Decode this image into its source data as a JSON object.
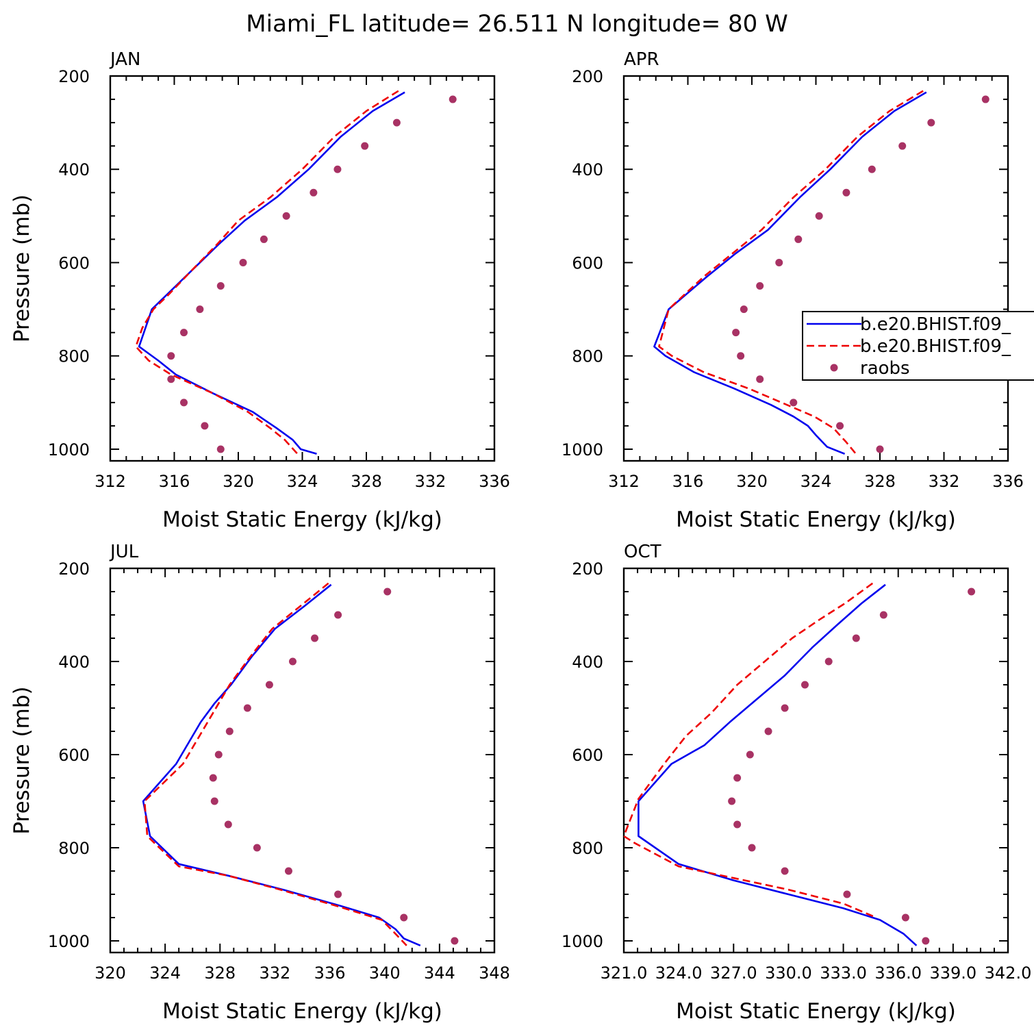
{
  "figure": {
    "title": "Miami_FL  latitude= 26.511 N longitude= 80 W"
  },
  "colors": {
    "series_solid": "#0000ee",
    "series_dashed": "#ee0000",
    "raobs": "#a83264"
  },
  "legend": {
    "entries": [
      "b.e20.BHIST.f09_",
      "b.e20.BHIST.f09_",
      "raobs"
    ],
    "placement": "right edge of APR panel, clipped"
  },
  "chart_data": [
    {
      "type": "line",
      "title": "JAN",
      "xlabel": "Moist Static Energy (kJ/kg)",
      "ylabel": "Pressure (mb)",
      "xlim": [
        312,
        336
      ],
      "ylim": [
        1025,
        200
      ],
      "xticks": [
        312,
        316,
        320,
        324,
        328,
        332,
        336
      ],
      "xtick_labels": [
        "312",
        "316",
        "320",
        "324",
        "328",
        "332",
        "336"
      ],
      "yticks": [
        200,
        400,
        600,
        800,
        1000
      ],
      "ytick_labels": [
        "200",
        "400",
        "600",
        "800",
        "1000"
      ],
      "series": [
        {
          "style": "solid",
          "x": [
            330.4,
            328.4,
            326.4,
            324.4,
            322.4,
            320.4,
            318.8,
            317.0,
            315.5,
            314.6,
            313.8,
            315.0,
            316.1,
            318.4,
            320.9,
            322.4,
            323.4,
            323.9,
            324.9
          ],
          "y": [
            235,
            275,
            330,
            400,
            460,
            510,
            560,
            620,
            670,
            700,
            780,
            810,
            840,
            880,
            920,
            955,
            980,
            1000,
            1010
          ]
        },
        {
          "style": "dashed",
          "x": [
            330.0,
            328.0,
            326.0,
            324.0,
            322.0,
            320.0,
            318.7,
            317.0,
            315.6,
            314.7,
            314.0,
            313.6,
            314.4,
            315.8,
            318.4,
            320.6,
            322.0,
            322.9,
            323.7
          ],
          "y": [
            232,
            275,
            330,
            400,
            460,
            510,
            560,
            620,
            670,
            700,
            740,
            780,
            810,
            840,
            880,
            920,
            955,
            980,
            1010
          ]
        },
        {
          "style": "markers",
          "x": [
            333.4,
            329.9,
            327.9,
            326.2,
            324.7,
            323.0,
            321.6,
            320.3,
            318.9,
            317.6,
            316.6,
            315.8,
            315.8,
            316.6,
            317.9,
            318.9
          ],
          "y": [
            250,
            300,
            350,
            400,
            450,
            500,
            550,
            600,
            650,
            700,
            750,
            800,
            850,
            900,
            950,
            1000
          ]
        }
      ]
    },
    {
      "type": "line",
      "title": "APR",
      "xlabel": "Moist Static Energy (kJ/kg)",
      "ylabel": "",
      "xlim": [
        312,
        336
      ],
      "ylim": [
        1025,
        200
      ],
      "xticks": [
        312,
        316,
        320,
        324,
        328,
        332,
        336
      ],
      "xtick_labels": [
        "312",
        "316",
        "320",
        "324",
        "328",
        "332",
        "336"
      ],
      "yticks": [
        200,
        400,
        600,
        800,
        1000
      ],
      "ytick_labels": [
        "200",
        "400",
        "600",
        "800",
        "1000"
      ],
      "series": [
        {
          "style": "solid",
          "x": [
            330.9,
            328.9,
            326.9,
            324.9,
            323.0,
            321.0,
            319.0,
            317.2,
            314.8,
            313.9,
            314.6,
            316.4,
            318.9,
            321.2,
            322.6,
            323.5,
            324.0,
            324.7,
            325.8
          ],
          "y": [
            235,
            275,
            330,
            400,
            460,
            530,
            580,
            630,
            700,
            780,
            800,
            835,
            870,
            905,
            930,
            950,
            970,
            995,
            1010
          ]
        },
        {
          "style": "dashed",
          "x": [
            330.7,
            328.6,
            326.6,
            324.6,
            322.6,
            320.6,
            318.8,
            317.0,
            314.8,
            314.2,
            315.0,
            317.0,
            319.8,
            322.2,
            323.9,
            325.1,
            325.9,
            326.5
          ],
          "y": [
            232,
            275,
            330,
            400,
            460,
            530,
            580,
            630,
            700,
            780,
            800,
            835,
            870,
            905,
            930,
            955,
            985,
            1010
          ]
        },
        {
          "style": "markers",
          "x": [
            334.6,
            331.2,
            329.4,
            327.5,
            325.9,
            324.2,
            322.9,
            321.7,
            320.5,
            319.5,
            319.0,
            319.3,
            320.5,
            322.6,
            325.5,
            328.0
          ],
          "y": [
            250,
            300,
            350,
            400,
            450,
            500,
            550,
            600,
            650,
            700,
            750,
            800,
            850,
            900,
            950,
            1000
          ]
        }
      ]
    },
    {
      "type": "line",
      "title": "JUL",
      "xlabel": "Moist Static Energy (kJ/kg)",
      "ylabel": "Pressure (mb)",
      "xlim": [
        320,
        348
      ],
      "ylim": [
        1025,
        200
      ],
      "xticks": [
        320,
        324,
        328,
        332,
        336,
        340,
        344,
        348
      ],
      "xtick_labels": [
        "320",
        "324",
        "328",
        "332",
        "336",
        "340",
        "344",
        "348"
      ],
      "series": [
        {
          "style": "solid",
          "x": [
            336.1,
            334.2,
            332.0,
            330.3,
            328.8,
            327.6,
            326.6,
            324.8,
            322.4,
            322.9,
            325.0,
            328.6,
            332.6,
            336.8,
            339.6,
            340.8,
            341.4,
            342.6
          ],
          "y": [
            235,
            280,
            330,
            390,
            450,
            490,
            530,
            620,
            700,
            775,
            835,
            860,
            890,
            925,
            950,
            975,
            995,
            1010
          ]
        },
        {
          "style": "dashed",
          "x": [
            335.9,
            333.9,
            331.8,
            330.2,
            328.7,
            327.9,
            327.1,
            325.3,
            322.5,
            322.7,
            325.0,
            328.6,
            332.4,
            336.5,
            339.8,
            340.8,
            341.6
          ],
          "y": [
            232,
            280,
            330,
            390,
            450,
            490,
            530,
            620,
            700,
            775,
            840,
            860,
            890,
            925,
            955,
            985,
            1010
          ]
        },
        {
          "style": "markers",
          "x": [
            340.2,
            336.6,
            334.9,
            333.3,
            331.6,
            330.0,
            328.7,
            327.9,
            327.5,
            327.6,
            328.6,
            330.7,
            333.0,
            336.6,
            341.4,
            345.1
          ],
          "y": [
            250,
            300,
            350,
            400,
            450,
            500,
            550,
            600,
            650,
            700,
            750,
            800,
            850,
            900,
            950,
            1000
          ]
        }
      ]
    },
    {
      "type": "line",
      "title": "OCT",
      "xlabel": "Moist Static Energy (kJ/kg)",
      "ylabel": "",
      "xlim": [
        321,
        342
      ],
      "ylim": [
        1025,
        200
      ],
      "xticks": [
        321,
        324,
        327,
        330,
        333,
        336,
        339,
        342
      ],
      "xtick_labels": [
        "321.0",
        "324.0",
        "327.0",
        "330.0",
        "333.0",
        "336.0",
        "339.0",
        "342.0"
      ],
      "yticks": [
        200,
        400,
        600,
        800,
        1000
      ],
      "ytick_labels": [
        "200",
        "400",
        "600",
        "800",
        "1000"
      ],
      "series": [
        {
          "style": "solid",
          "x": [
            335.3,
            334.0,
            332.7,
            331.3,
            329.8,
            328.3,
            326.8,
            325.4,
            323.6,
            321.8,
            321.8,
            324.0,
            327.0,
            330.0,
            333.0,
            335.0,
            336.3,
            337.0
          ],
          "y": [
            235,
            275,
            320,
            370,
            430,
            480,
            530,
            580,
            620,
            700,
            775,
            835,
            870,
            900,
            930,
            955,
            985,
            1010
          ]
        },
        {
          "style": "dashed",
          "x": [
            334.6,
            333.1,
            331.7,
            330.2,
            328.7,
            327.2,
            325.8,
            324.4,
            323.2,
            321.8,
            321.0,
            321.6,
            324.0,
            327.0,
            330.0,
            333.0,
            334.8
          ],
          "y": [
            232,
            275,
            310,
            350,
            400,
            450,
            510,
            560,
            620,
            695,
            775,
            790,
            840,
            865,
            890,
            920,
            950
          ]
        },
        {
          "style": "markers",
          "x": [
            340.0,
            335.2,
            333.7,
            332.2,
            330.9,
            329.8,
            328.9,
            327.9,
            327.2,
            326.9,
            327.2,
            328.0,
            329.8,
            333.2,
            336.4,
            337.5
          ],
          "y": [
            250,
            300,
            350,
            400,
            450,
            500,
            550,
            600,
            650,
            700,
            750,
            800,
            850,
            900,
            950,
            1000
          ]
        }
      ]
    }
  ]
}
